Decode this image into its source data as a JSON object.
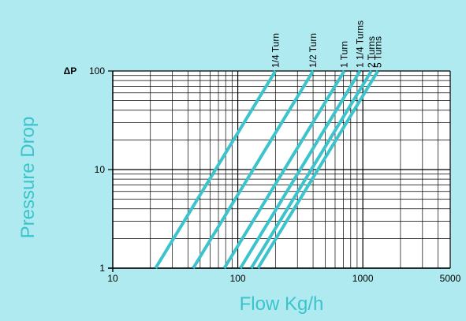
{
  "chart_data": {
    "type": "line",
    "title": "",
    "xlabel": "Flow Kg/h",
    "ylabel": "Pressure Drop",
    "y_symbol": "ΔP",
    "xscale": "log",
    "yscale": "log",
    "xlim": [
      10,
      5000
    ],
    "ylim": [
      1,
      100
    ],
    "x_ticks": [
      {
        "value": 10,
        "label": "10"
      },
      {
        "value": 100,
        "label": "100"
      },
      {
        "value": 1000,
        "label": "1000"
      },
      {
        "value": 5000,
        "label": "5000"
      }
    ],
    "y_ticks": [
      {
        "value": 1,
        "label": "1"
      },
      {
        "value": 10,
        "label": "10"
      },
      {
        "value": 100,
        "label": "100"
      }
    ],
    "grid": true,
    "colors": {
      "background": "#aeeaef",
      "plot_background": "#ffffff",
      "series": "#3cc3cc",
      "axis_title": "#3cc3cc",
      "grid": "#000000"
    },
    "series": [
      {
        "name": "1/4 Turn",
        "x": [
          22,
          200
        ],
        "y": [
          1,
          100
        ]
      },
      {
        "name": "1/2 Turn",
        "x": [
          44,
          400
        ],
        "y": [
          1,
          100
        ]
      },
      {
        "name": "1 Turn",
        "x": [
          78,
          710
        ],
        "y": [
          1,
          100
        ]
      },
      {
        "name": "1 1/4 Turns",
        "x": [
          105,
          950
        ],
        "y": [
          1,
          100
        ]
      },
      {
        "name": "2 Turns",
        "x": [
          128,
          1170
        ],
        "y": [
          1,
          100
        ]
      },
      {
        "name": "5 Turns",
        "x": [
          145,
          1320
        ],
        "y": [
          1,
          100
        ]
      }
    ]
  }
}
